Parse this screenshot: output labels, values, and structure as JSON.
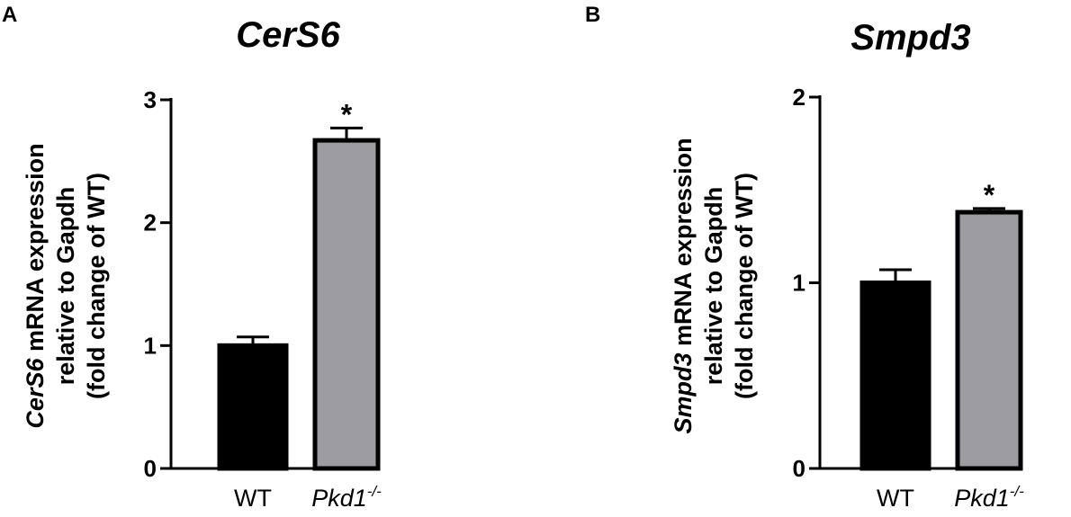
{
  "chart_data": [
    {
      "panel": "A",
      "type": "bar",
      "title": "CerS6",
      "ylabel": {
        "line1_italic": "CerS6",
        "line1_rest": " mRNA expression",
        "line2": "relative to Gapdh",
        "line3": "(fold change of WT)"
      },
      "categories": [
        {
          "base": "WT",
          "sup": ""
        },
        {
          "base": "Pkd1",
          "sup": "-/-"
        }
      ],
      "values": [
        1.0,
        2.67
      ],
      "errors": [
        0.07,
        0.1
      ],
      "significance": [
        "",
        "*"
      ],
      "colors": [
        "#000000",
        "#9d9ca2"
      ],
      "ylim": [
        0,
        3
      ],
      "yticks": [
        "0",
        "1",
        "2",
        "3"
      ]
    },
    {
      "panel": "B",
      "type": "bar",
      "title": "Smpd3",
      "ylabel": {
        "line1_italic": "Smpd3",
        "line1_rest": " mRNA expression",
        "line2": "relative to Gapdh",
        "line3": "(fold change of WT)"
      },
      "categories": [
        {
          "base": "WT",
          "sup": ""
        },
        {
          "base": "Pkd1",
          "sup": "-/-"
        }
      ],
      "values": [
        1.0,
        1.38
      ],
      "errors": [
        0.07,
        0.02
      ],
      "significance": [
        "",
        "*"
      ],
      "colors": [
        "#000000",
        "#9d9ca2"
      ],
      "ylim": [
        0,
        2
      ],
      "yticks": [
        "0",
        "1",
        "2"
      ]
    }
  ]
}
